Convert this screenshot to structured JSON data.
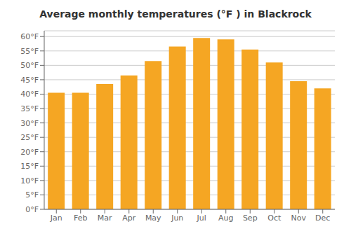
{
  "chart_data": {
    "type": "bar",
    "title": "Average monthly temperatures (°F ) in Blackrock",
    "categories": [
      "Jan",
      "Feb",
      "Mar",
      "Apr",
      "May",
      "Jun",
      "Jul",
      "Aug",
      "Sep",
      "Oct",
      "Nov",
      "Dec"
    ],
    "values": [
      40.5,
      40.5,
      43.5,
      46.5,
      51.5,
      56.5,
      59.5,
      59.0,
      55.5,
      51.0,
      44.5,
      42.0
    ],
    "color": "#F5A623",
    "ylim": [
      0,
      62
    ],
    "yticks": [
      {
        "value": 0,
        "label": "0°F"
      },
      {
        "value": 5,
        "label": "5°F"
      },
      {
        "value": 10,
        "label": "10°F"
      },
      {
        "value": 15,
        "label": "15°F"
      },
      {
        "value": 20,
        "label": "20°F"
      },
      {
        "value": 25,
        "label": "25°F"
      },
      {
        "value": 30,
        "label": "30°F"
      },
      {
        "value": 35,
        "label": "35°F"
      },
      {
        "value": 40,
        "label": "40°F"
      },
      {
        "value": 45,
        "label": "45°F"
      },
      {
        "value": 50,
        "label": "50°F"
      },
      {
        "value": 55,
        "label": "55°F"
      },
      {
        "value": 60,
        "label": "60°F"
      }
    ],
    "grid": true
  }
}
